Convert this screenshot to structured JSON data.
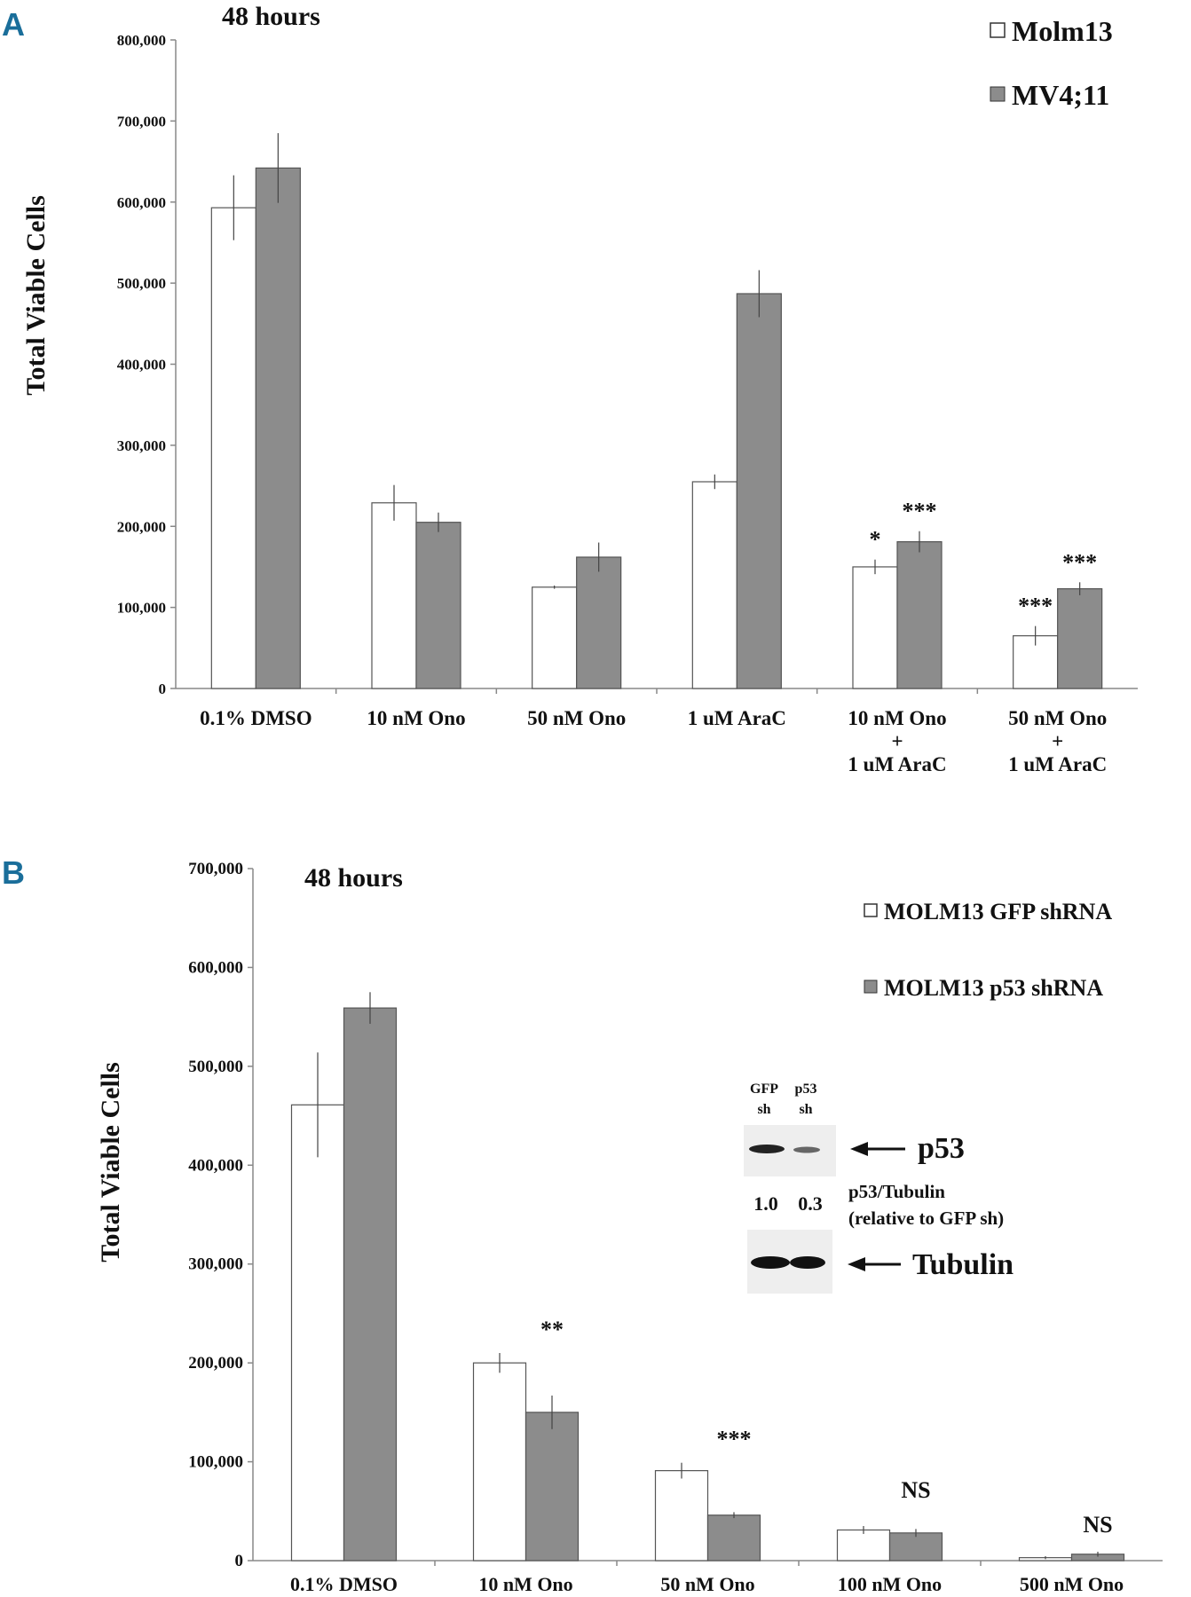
{
  "colors": {
    "panel_letter": "#1a6e9a",
    "bar_filled": "#8c8c8c",
    "bar_open": "#ffffff",
    "axis": "#888888",
    "text": "#111111"
  },
  "chart_data": [
    {
      "type": "bar",
      "panel": "A",
      "title": "48 hours",
      "ylabel": "Total Viable Cells",
      "xlabel": "",
      "ylim": [
        0,
        800000
      ],
      "yticks": [
        "0",
        "100,000",
        "200,000",
        "300,000",
        "400,000",
        "500,000",
        "600,000",
        "700,000",
        "800,000"
      ],
      "ytick_values": [
        0,
        100000,
        200000,
        300000,
        400000,
        500000,
        600000,
        700000,
        800000
      ],
      "grid": false,
      "legend_position": "top-right",
      "categories": [
        [
          "0.1% DMSO"
        ],
        [
          "10 nM Ono"
        ],
        [
          "50 nM Ono"
        ],
        [
          "1 uM AraC"
        ],
        [
          "10 nM Ono",
          "+",
          "1 uM AraC"
        ],
        [
          "50 nM Ono",
          "+",
          "1 uM AraC"
        ]
      ],
      "series": [
        {
          "name": "Molm13",
          "style": "open",
          "values": [
            593000,
            229000,
            125000,
            255000,
            150000,
            65000
          ],
          "errors": [
            40000,
            22000,
            2000,
            9000,
            9000,
            12000
          ],
          "annotations": [
            "",
            "",
            "",
            "",
            "*",
            "***"
          ]
        },
        {
          "name": "MV4;11",
          "style": "filled",
          "values": [
            642000,
            205000,
            162000,
            487000,
            181000,
            123000
          ],
          "errors": [
            43000,
            12000,
            18000,
            29000,
            13000,
            8000
          ],
          "annotations": [
            "",
            "",
            "",
            "",
            "***",
            "***"
          ]
        }
      ]
    },
    {
      "type": "bar",
      "panel": "B",
      "title": "48 hours",
      "ylabel": "Total Viable Cells",
      "xlabel": "",
      "ylim": [
        0,
        700000
      ],
      "yticks": [
        "0",
        "100,000",
        "200,000",
        "300,000",
        "400,000",
        "500,000",
        "600,000",
        "700,000"
      ],
      "ytick_values": [
        0,
        100000,
        200000,
        300000,
        400000,
        500000,
        600000,
        700000
      ],
      "grid": false,
      "legend_position": "top-right",
      "categories": [
        [
          "0.1% DMSO"
        ],
        [
          "10 nM Ono"
        ],
        [
          "50 nM Ono"
        ],
        [
          "100 nM Ono"
        ],
        [
          "500 nM Ono"
        ]
      ],
      "group_annotations": [
        "",
        "**",
        "***",
        "NS",
        "NS"
      ],
      "series": [
        {
          "name": "MOLM13 GFP shRNA",
          "style": "open",
          "values": [
            461000,
            200000,
            91000,
            31000,
            3000
          ],
          "errors": [
            53000,
            10000,
            8000,
            4000,
            1500
          ]
        },
        {
          "name": "MOLM13 p53 shRNA",
          "style": "filled",
          "values": [
            559000,
            150000,
            46000,
            28000,
            6500
          ],
          "errors": [
            16000,
            17000,
            3000,
            4000,
            2500
          ]
        }
      ],
      "inset": {
        "lane_labels": [
          [
            "GFP",
            "sh"
          ],
          [
            "p53",
            "sh"
          ]
        ],
        "band1_label": "p53",
        "ratio_values": [
          "1.0",
          "0.3"
        ],
        "ratio_label": [
          "p53/Tubulin",
          "(relative to GFP sh)"
        ],
        "band2_label": "Tubulin"
      }
    }
  ]
}
